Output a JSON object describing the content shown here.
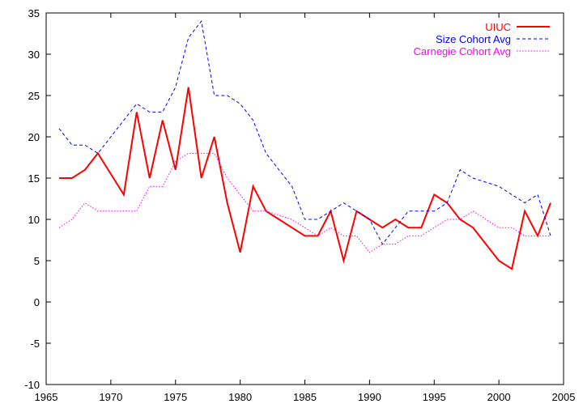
{
  "chart_data": {
    "type": "line",
    "title": "",
    "xlabel": "",
    "ylabel": "",
    "xlim": [
      1965,
      2005
    ],
    "ylim": [
      -10,
      35
    ],
    "xticks": [
      1965,
      1970,
      1975,
      1980,
      1985,
      1990,
      1995,
      2000,
      2005
    ],
    "yticks": [
      -10,
      -5,
      0,
      5,
      10,
      15,
      20,
      25,
      30,
      35
    ],
    "grid": false,
    "legend_position": "top-right",
    "series": [
      {
        "name": "UIUC",
        "color": "#ff0000",
        "style": "solid",
        "x": [
          1966,
          1967,
          1968,
          1969,
          1970,
          1971,
          1972,
          1973,
          1974,
          1975,
          1976,
          1977,
          1978,
          1979,
          1980,
          1981,
          1982,
          1983,
          1984,
          1985,
          1986,
          1987,
          1988,
          1989,
          1990,
          1991,
          1992,
          1993,
          1994,
          1995,
          1996,
          1997,
          1998,
          1999,
          2000,
          2001,
          2002,
          2003,
          2004
        ],
        "values": [
          15,
          15,
          16,
          18,
          15.5,
          13,
          23,
          15,
          22,
          16,
          26,
          15,
          20,
          12,
          6,
          14,
          11,
          10,
          9,
          8,
          8,
          11,
          5,
          11,
          10,
          9,
          10,
          9,
          9,
          13,
          12,
          10,
          9,
          7,
          5,
          4,
          11,
          8,
          12
        ]
      },
      {
        "name": "Size Cohort Avg",
        "color": "#0000ff",
        "style": "dashed",
        "x": [
          1966,
          1967,
          1968,
          1969,
          1970,
          1971,
          1972,
          1973,
          1974,
          1975,
          1976,
          1977,
          1978,
          1979,
          1980,
          1981,
          1982,
          1983,
          1984,
          1985,
          1986,
          1987,
          1988,
          1989,
          1990,
          1991,
          1992,
          1993,
          1994,
          1995,
          1996,
          1997,
          1998,
          1999,
          2000,
          2001,
          2002,
          2003,
          2004
        ],
        "values": [
          21,
          19,
          19,
          18,
          20,
          22,
          24,
          23,
          23,
          26,
          32,
          34,
          25,
          25,
          24,
          22,
          18,
          16,
          14,
          10,
          10,
          11,
          12,
          11,
          10,
          7,
          9,
          11,
          11,
          11,
          12,
          16,
          15,
          14.5,
          14,
          13,
          12,
          13,
          8
        ]
      },
      {
        "name": "Carnegie Cohort Avg",
        "color": "#ff00ff",
        "style": "dotted",
        "x": [
          1966,
          1967,
          1968,
          1969,
          1970,
          1971,
          1972,
          1973,
          1974,
          1975,
          1976,
          1977,
          1978,
          1979,
          1980,
          1981,
          1982,
          1983,
          1984,
          1985,
          1986,
          1987,
          1988,
          1989,
          1990,
          1991,
          1992,
          1993,
          1994,
          1995,
          1996,
          1997,
          1998,
          1999,
          2000,
          2001,
          2002,
          2003,
          2004
        ],
        "values": [
          9,
          10,
          12,
          11,
          11,
          11,
          11,
          14,
          14,
          17,
          18,
          18,
          18,
          15,
          13,
          11,
          11,
          10.5,
          10,
          9,
          8,
          9,
          8,
          8,
          6,
          7,
          7,
          8,
          8,
          9,
          10,
          10,
          11,
          10,
          9,
          9,
          8,
          8,
          8
        ]
      }
    ]
  }
}
